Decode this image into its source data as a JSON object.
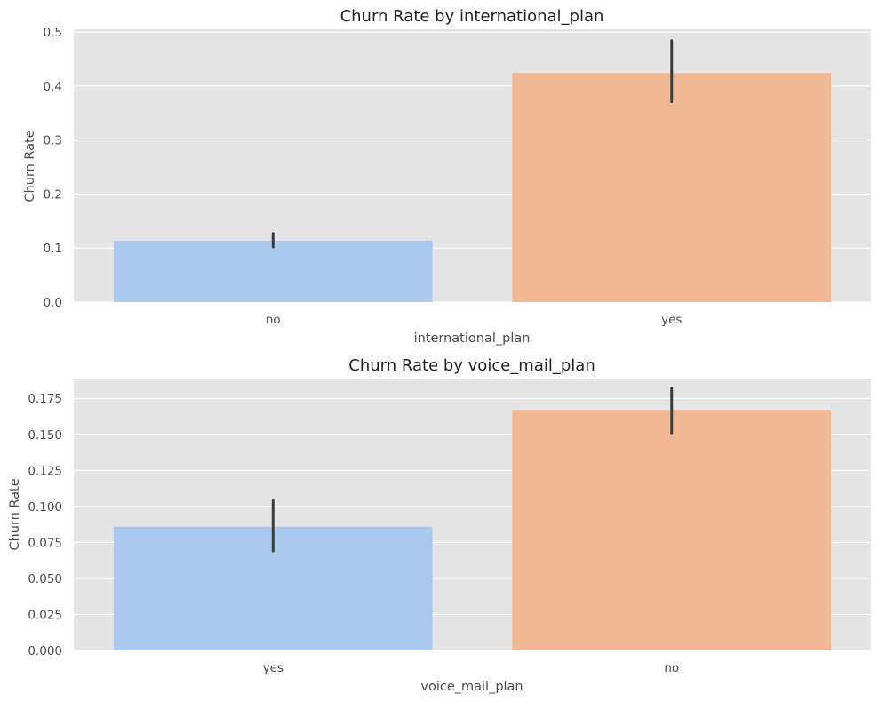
{
  "chart_data": [
    {
      "type": "bar",
      "title": "Churn Rate by international_plan",
      "xlabel": "international_plan",
      "ylabel": "Churn Rate",
      "categories": [
        "no",
        "yes"
      ],
      "values": [
        0.114,
        0.424
      ],
      "error_bars": [
        [
          0.102,
          0.127
        ],
        [
          0.371,
          0.484
        ]
      ],
      "ylim": [
        0,
        0.505
      ],
      "yticks": [
        "0.0",
        "0.1",
        "0.2",
        "0.3",
        "0.4",
        "0.5"
      ],
      "ytick_values": [
        0,
        0.1,
        0.2,
        0.3,
        0.4,
        0.5
      ],
      "colors": [
        "#abc9ed",
        "#f0b893"
      ],
      "grid": true
    },
    {
      "type": "bar",
      "title": "Churn Rate by voice_mail_plan",
      "xlabel": "voice_mail_plan",
      "ylabel": "Churn Rate",
      "categories": [
        "yes",
        "no"
      ],
      "values": [
        0.086,
        0.167
      ],
      "error_bars": [
        [
          0.069,
          0.104
        ],
        [
          0.151,
          0.182
        ]
      ],
      "ylim": [
        0,
        0.1887
      ],
      "yticks": [
        "0.000",
        "0.025",
        "0.050",
        "0.075",
        "0.100",
        "0.125",
        "0.150",
        "0.175"
      ],
      "ytick_values": [
        0,
        0.025,
        0.05,
        0.075,
        0.1,
        0.125,
        0.15,
        0.175
      ],
      "colors": [
        "#abc9ed",
        "#f0b893"
      ],
      "grid": true
    }
  ],
  "style": {
    "plot_background": "#e5e5e5",
    "grid_color": "#ffffff",
    "error_bar_color": "#3c3c3c"
  }
}
